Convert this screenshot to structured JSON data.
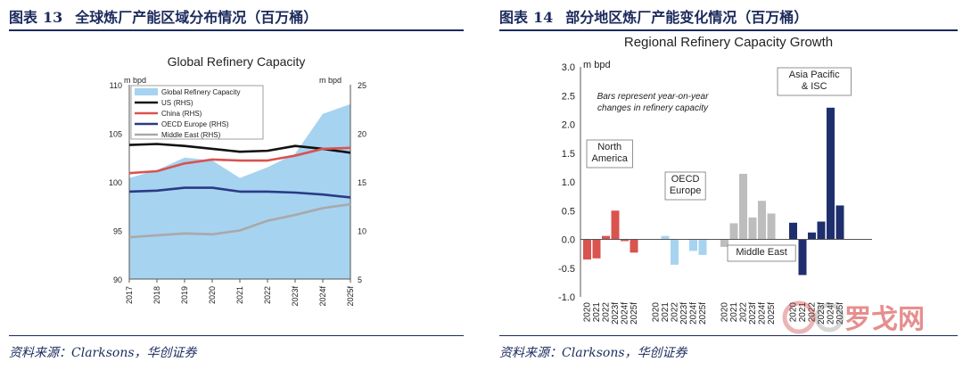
{
  "page": {
    "left_panel": {
      "label": "图表",
      "number": "13",
      "heading": "全球炼厂产能区域分布情况（百万桶）",
      "source": "资料来源：Clarksons，华创证券"
    },
    "right_panel": {
      "label": "图表",
      "number": "14",
      "heading": "部分地区炼厂产能变化情况（百万桶）",
      "source": "资料来源：Clarksons，华创证券"
    },
    "watermark": "罗戈网"
  },
  "colors": {
    "navy": "#1b2a5c",
    "area": "#a6d3f0",
    "us": "#111111",
    "china": "#d9534f",
    "oecd": "#2b3a87",
    "me": "#a9a9a9",
    "na_bar": "#d9534f",
    "oecd_bar": "#a6d3f0",
    "me_bar": "#bdbdbd",
    "asia_bar": "#1f2f6e"
  },
  "chart_data": [
    {
      "type": "area",
      "title": "Global Refinery Capacity",
      "ylabel_left": "m bpd",
      "ylabel_right": "m bpd",
      "categories": [
        "2017",
        "2018",
        "2019",
        "2020",
        "2021",
        "2022",
        "2023f",
        "2024f",
        "2025f"
      ],
      "ylim_left": [
        90,
        110
      ],
      "yticks_left": [
        "90",
        "95",
        "100",
        "105",
        "110"
      ],
      "ylim_right": [
        5,
        25
      ],
      "yticks_right": [
        "5",
        "10",
        "15",
        "20",
        "25"
      ],
      "legend": [
        "Global Refinery Capacity",
        "US (RHS)",
        "China (RHS)",
        "OECD Europe (RHS)",
        "Middle East (RHS)"
      ],
      "area_series": {
        "name": "Global Refinery Capacity",
        "axis": "left",
        "values": [
          100.4,
          101.2,
          102.5,
          102.2,
          100.4,
          101.5,
          102.9,
          107.0,
          108.0
        ]
      },
      "series": [
        {
          "name": "US (RHS)",
          "axis": "right",
          "values": [
            18.8,
            18.9,
            18.7,
            18.4,
            18.1,
            18.2,
            18.7,
            18.4,
            18.0
          ]
        },
        {
          "name": "China (RHS)",
          "axis": "right",
          "values": [
            15.9,
            16.1,
            16.9,
            17.3,
            17.2,
            17.2,
            17.7,
            18.4,
            18.5
          ]
        },
        {
          "name": "OECD Europe (RHS)",
          "axis": "right",
          "values": [
            14.0,
            14.1,
            14.4,
            14.4,
            14.0,
            14.0,
            13.9,
            13.7,
            13.4
          ]
        },
        {
          "name": "Middle East (RHS)",
          "axis": "right",
          "values": [
            9.3,
            9.5,
            9.7,
            9.6,
            10.0,
            11.0,
            11.6,
            12.3,
            12.7
          ]
        }
      ]
    },
    {
      "type": "bar",
      "title": "Regional Refinery Capacity Growth",
      "ylabel": "m bpd",
      "ylim": [
        -1.0,
        3.0
      ],
      "yticks": [
        "-1.0",
        "-0.5",
        "0.0",
        "0.5",
        "1.0",
        "1.5",
        "2.0",
        "2.5",
        "3.0"
      ],
      "note": [
        "Bars represent year-on-year",
        "changes in refinery capacity"
      ],
      "groups": [
        {
          "name": "North America",
          "label_lines": [
            "North",
            "America"
          ],
          "color": "na",
          "categories": [
            "2020",
            "2021",
            "2022",
            "2023f",
            "2024f",
            "2025f"
          ],
          "values": [
            -0.35,
            -0.33,
            0.06,
            0.5,
            -0.03,
            -0.23
          ]
        },
        {
          "name": "OECD Europe",
          "label_lines": [
            "OECD",
            "Europe"
          ],
          "color": "oecd",
          "categories": [
            "2020",
            "2021",
            "2022",
            "2023f",
            "2024f",
            "2025f"
          ],
          "values": [
            0.0,
            0.06,
            -0.44,
            0.0,
            -0.2,
            -0.27
          ]
        },
        {
          "name": "Middle East",
          "label_lines": [
            "Middle East"
          ],
          "color": "me",
          "categories": [
            "2020",
            "2021",
            "2022",
            "2023f",
            "2024f",
            "2025f"
          ],
          "values": [
            -0.13,
            0.28,
            1.14,
            0.38,
            0.67,
            0.45
          ]
        },
        {
          "name": "Asia Pacific & ISC",
          "label_lines": [
            "Asia Pacific",
            "& ISC"
          ],
          "color": "asia",
          "categories": [
            "2020",
            "2021",
            "2022",
            "2023f",
            "2024f",
            "2025f"
          ],
          "values": [
            0.29,
            -0.62,
            0.12,
            0.31,
            2.29,
            0.59
          ]
        }
      ]
    }
  ]
}
